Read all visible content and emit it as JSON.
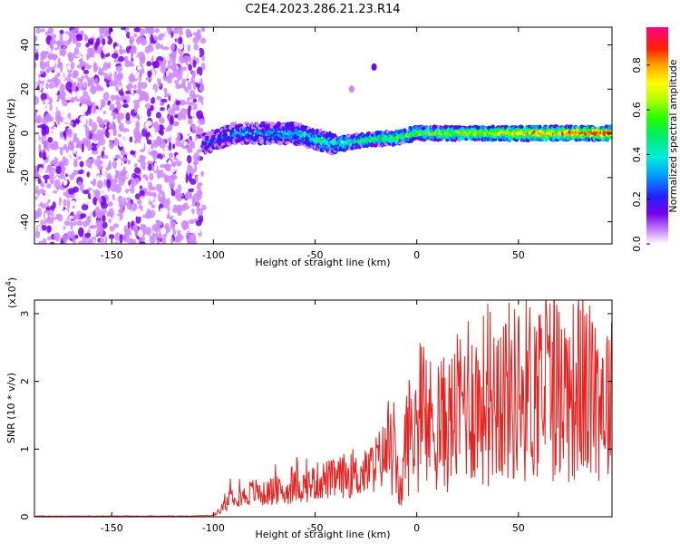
{
  "title": "C2E4.2023.286.21.23.R14",
  "chart_data": [
    {
      "type": "heatmap",
      "xlabel": "Height of straight line (km)",
      "ylabel": "Frequency (Hz)",
      "xlim": [
        -188,
        96
      ],
      "ylim": [
        -50,
        48
      ],
      "xticks": [
        -150,
        -100,
        -50,
        0,
        50
      ],
      "yticks": [
        -40,
        -20,
        0,
        20,
        40
      ],
      "colorbar": {
        "label": "Normalized spectral amplitude",
        "range": [
          0,
          0.97
        ],
        "ticks": [
          "0.0",
          "0.2",
          "0.4",
          "0.6",
          "0.8"
        ],
        "colormap": "rainbow (white, violet, blue, cyan, green, yellow, red, magenta)"
      },
      "features": [
        {
          "region": "noise",
          "x_range": [
            -188,
            -105
          ],
          "freq_range": [
            -50,
            48
          ],
          "amplitude": "low (0.0-0.15)"
        },
        {
          "region": "signal_band",
          "x_range": [
            -105,
            96
          ],
          "center_freq": [
            [
              -105,
              -5
            ],
            [
              -90,
              0
            ],
            [
              -60,
              0
            ],
            [
              -40,
              -5
            ],
            [
              -25,
              -3
            ],
            [
              -10,
              -2
            ],
            [
              0,
              0
            ],
            [
              50,
              0
            ],
            [
              96,
              0
            ]
          ],
          "amplitude": "0.3-0.97, increasing with height"
        },
        {
          "region": "spot",
          "x": -21,
          "freq": 30,
          "amplitude": 0.2
        },
        {
          "region": "spot",
          "x": -32,
          "freq": 20,
          "amplitude": 0.1
        }
      ]
    },
    {
      "type": "line",
      "xlabel": "Height of straight line (km)",
      "ylabel": "SNR (10 * v/v)",
      "y_scale_note": "(x10",
      "y_scale_exp": "4",
      "xlim": [
        -188,
        96
      ],
      "ylim": [
        0,
        3.2
      ],
      "xticks": [
        -150,
        -100,
        -50,
        0,
        50
      ],
      "yticks": [
        0,
        1,
        2,
        3
      ],
      "color": "#e8211f",
      "series": [
        {
          "x": [
            -188,
            -150,
            -110,
            -100,
            -95,
            -90,
            -85,
            -80,
            -75,
            -70,
            -65,
            -60,
            -55,
            -50,
            -45,
            -40,
            -35,
            -30,
            -25,
            -20,
            -15,
            -12,
            -8,
            -5,
            0,
            5,
            10,
            15,
            20,
            25,
            30,
            35,
            40,
            45,
            50,
            55,
            60,
            65,
            70,
            75,
            80,
            85,
            90,
            96
          ],
          "y": [
            0.01,
            0.01,
            0.01,
            0.02,
            0.15,
            0.35,
            0.3,
            0.38,
            0.33,
            0.4,
            0.35,
            0.45,
            0.45,
            0.52,
            0.55,
            0.55,
            0.62,
            0.6,
            0.65,
            0.8,
            0.95,
            1.0,
            0.3,
            1.2,
            1.3,
            1.35,
            1.4,
            1.35,
            1.55,
            1.85,
            1.65,
            1.8,
            1.85,
            1.85,
            1.8,
            1.9,
            1.9,
            2.0,
            1.9,
            1.85,
            1.9,
            1.8,
            1.85,
            1.7
          ]
        }
      ]
    }
  ]
}
